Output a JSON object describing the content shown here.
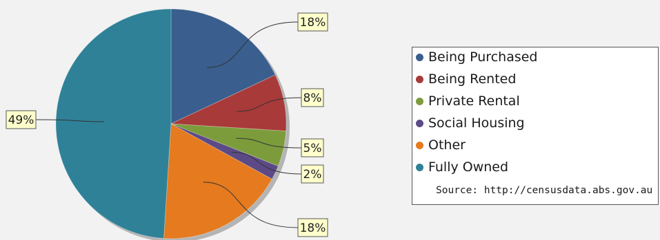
{
  "chart_data": {
    "type": "pie",
    "categories": [
      "Being Purchased",
      "Being Rented",
      "Private Rental",
      "Social Housing",
      "Other",
      "Fully Owned"
    ],
    "values": [
      18,
      8,
      5,
      2,
      18,
      49
    ],
    "value_labels": [
      "18%",
      "8%",
      "5%",
      "2%",
      "18%",
      "49%"
    ],
    "colors": [
      "#3a5f8e",
      "#a83a3a",
      "#7c9c3c",
      "#5c4a86",
      "#e57a1e",
      "#2f8198"
    ],
    "start_angle": "12 o'clock",
    "direction": "clockwise",
    "label_background": "#ffffcc",
    "legend": {
      "placement": "right",
      "items": [
        "Being Purchased",
        "Being Rented",
        "Private Rental",
        "Social Housing",
        "Other",
        "Fully Owned"
      ],
      "source": "Source: http://censusdata.abs.gov.au"
    }
  }
}
